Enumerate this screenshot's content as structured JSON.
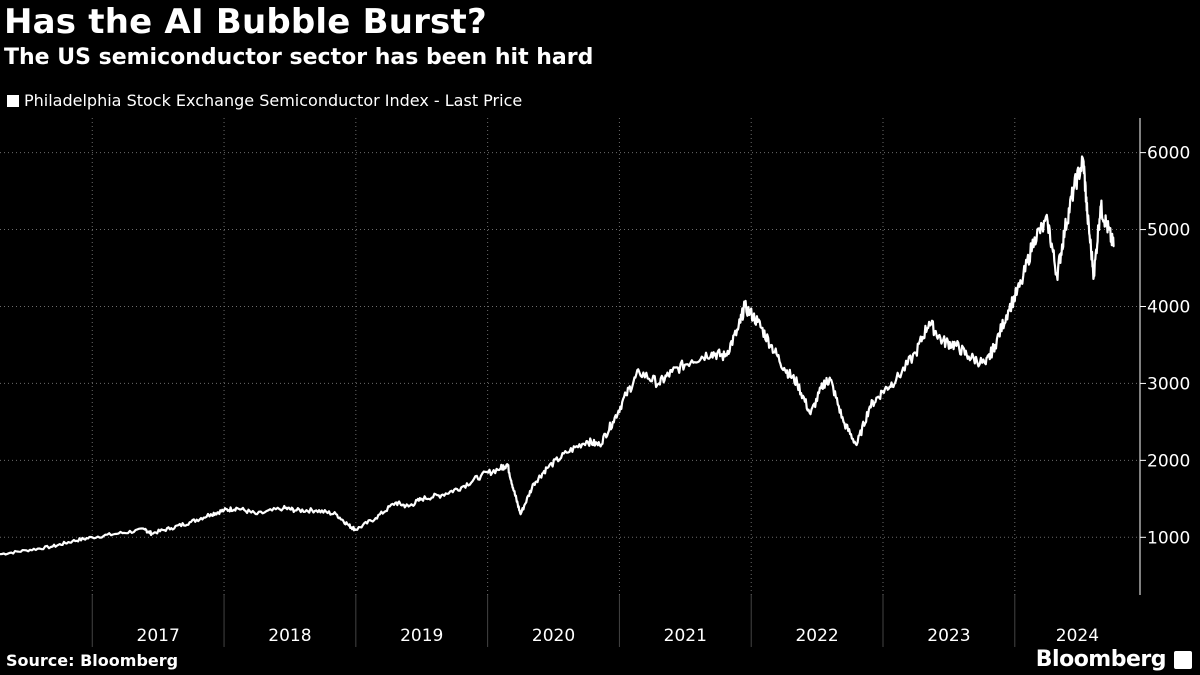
{
  "title": "Has the AI Bubble Burst?",
  "subtitle": "The US semiconductor sector has been hit hard",
  "source": "Source: Bloomberg",
  "brand": "Bloomberg",
  "chart_data": {
    "type": "line",
    "title": "Has the AI Bubble Burst?",
    "subtitle": "The US semiconductor sector has been hit hard",
    "legend": [
      "Philadelphia Stock Exchange Semiconductor Index - Last Price"
    ],
    "legend_position": "top-left",
    "series_color": "#ffffff",
    "xlabel": "",
    "ylabel": "",
    "x_unit": "decimal year",
    "xlim": [
      2016.3,
      2024.95
    ],
    "ylim": [
      250,
      6450
    ],
    "x_tick_labels": [
      "2017",
      "2018",
      "2019",
      "2020",
      "2021",
      "2022",
      "2023",
      "2024"
    ],
    "y_ticks": [
      1000,
      2000,
      3000,
      4000,
      5000,
      6000
    ],
    "y_tick_labels": [
      "1000",
      "2000",
      "3000",
      "4000",
      "5000",
      "6000"
    ],
    "grid": true,
    "series": [
      {
        "name": "Philadelphia Stock Exchange Semiconductor Index - Last Price",
        "x": [
          2016.3,
          2016.5,
          2016.7,
          2016.85,
          2017.0,
          2017.2,
          2017.4,
          2017.45,
          2017.6,
          2017.75,
          2017.9,
          2018.0,
          2018.1,
          2018.25,
          2018.45,
          2018.55,
          2018.7,
          2018.85,
          2018.95,
          2019.0,
          2019.15,
          2019.3,
          2019.4,
          2019.5,
          2019.65,
          2019.8,
          2019.95,
          2020.1,
          2020.15,
          2020.2,
          2020.25,
          2020.35,
          2020.45,
          2020.6,
          2020.75,
          2020.85,
          2020.95,
          2021.05,
          2021.15,
          2021.3,
          2021.4,
          2021.55,
          2021.7,
          2021.8,
          2021.9,
          2021.95,
          2022.05,
          2022.15,
          2022.25,
          2022.35,
          2022.45,
          2022.55,
          2022.6,
          2022.7,
          2022.8,
          2022.9,
          2023.0,
          2023.1,
          2023.25,
          2023.35,
          2023.45,
          2023.55,
          2023.65,
          2023.78,
          2023.85,
          2023.95,
          2024.05,
          2024.15,
          2024.25,
          2024.32,
          2024.38,
          2024.45,
          2024.52,
          2024.55,
          2024.6,
          2024.65,
          2024.7,
          2024.75
        ],
        "y": [
          780,
          830,
          880,
          950,
          1000,
          1050,
          1100,
          1050,
          1120,
          1200,
          1300,
          1350,
          1380,
          1300,
          1380,
          1350,
          1350,
          1300,
          1150,
          1100,
          1250,
          1450,
          1400,
          1500,
          1550,
          1650,
          1800,
          1900,
          1950,
          1600,
          1300,
          1700,
          1900,
          2100,
          2250,
          2200,
          2500,
          2850,
          3150,
          3000,
          3150,
          3300,
          3400,
          3350,
          3700,
          4000,
          3800,
          3500,
          3200,
          3000,
          2600,
          3000,
          3050,
          2500,
          2200,
          2700,
          2900,
          3050,
          3400,
          3800,
          3550,
          3500,
          3350,
          3250,
          3500,
          3950,
          4300,
          4900,
          5100,
          4400,
          5000,
          5550,
          5900,
          5200,
          4400,
          5300,
          5050,
          4780
        ]
      }
    ]
  }
}
